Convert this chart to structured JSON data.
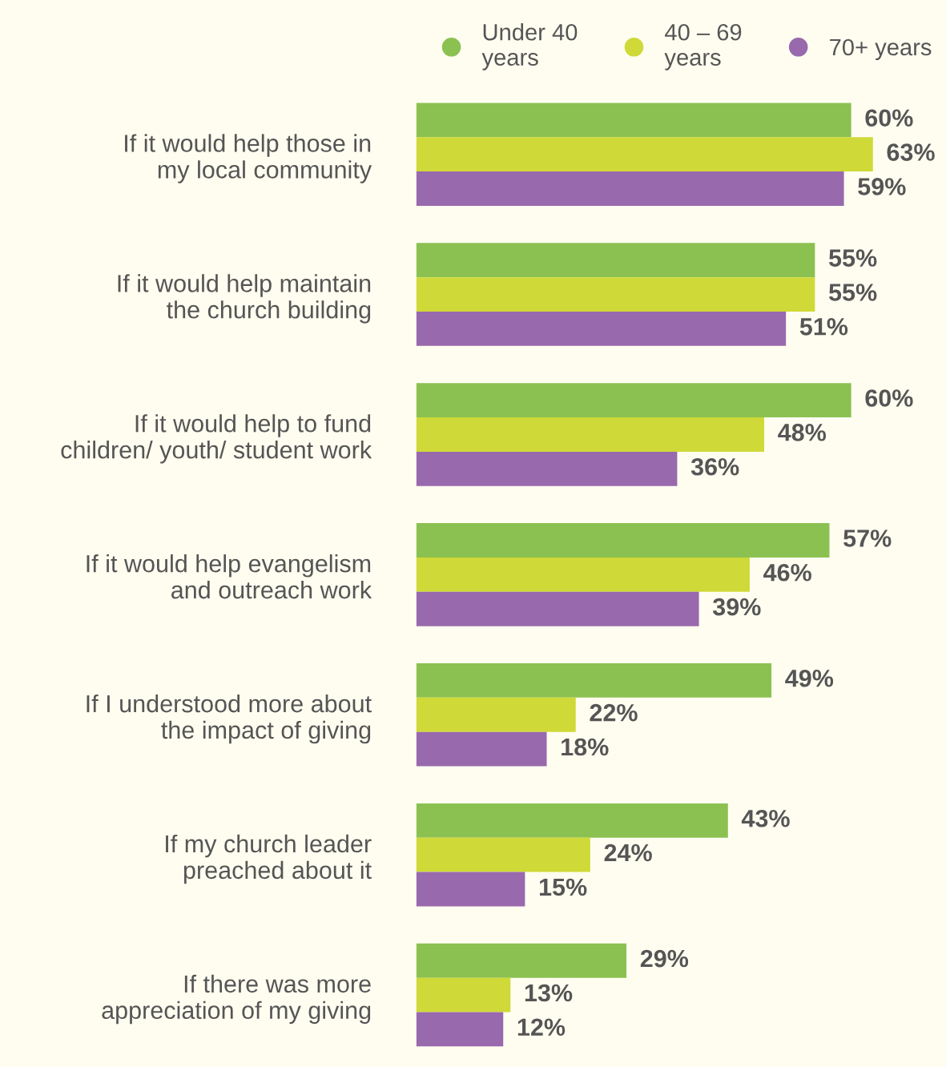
{
  "chart_data": {
    "type": "bar",
    "orientation": "horizontal",
    "tick_labels": "y",
    "legend": "top right",
    "categories": [
      "If it would help those in\nmy local community",
      "If it would help maintain\nthe church building",
      "If it would help to fund\nchildren/ youth/ student work",
      "If it would help evangelism\nand outreach work",
      "If I understood more about\nthe impact of giving",
      "If my church leader\npreached about it",
      "If there was more\nappreciation of my giving"
    ],
    "series": [
      {
        "name": "Under 40\nyears",
        "color": "#8bc151",
        "values": [
          60,
          55,
          60,
          57,
          49,
          43,
          29
        ],
        "value_labels": [
          "60%",
          "55%",
          "60%",
          "57%",
          "49%",
          "43%",
          "29%"
        ]
      },
      {
        "name": "40 – 69\nyears",
        "color": "#cfd937",
        "values": [
          63,
          55,
          48,
          46,
          22,
          24,
          13
        ],
        "value_labels": [
          "63%",
          "55%",
          "48%",
          "46%",
          "22%",
          "24%",
          "13%"
        ]
      },
      {
        "name": "70+ years",
        "color": "#9869ad",
        "values": [
          59,
          51,
          36,
          39,
          18,
          15,
          12
        ],
        "value_labels": [
          "59%",
          "51%",
          "36%",
          "39%",
          "18%",
          "15%",
          "12%"
        ]
      }
    ]
  }
}
